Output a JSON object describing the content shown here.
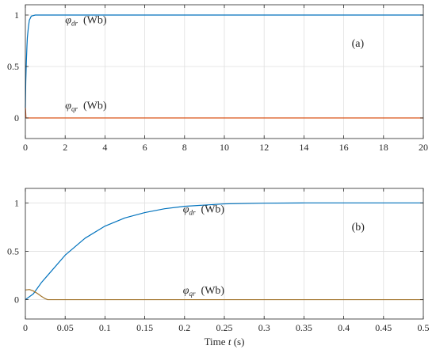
{
  "chart_data": [
    {
      "panel_label": "(a)",
      "type": "line",
      "xlim": [
        0,
        20
      ],
      "ylim": [
        -0.2,
        1.1
      ],
      "xticks": [
        0,
        2,
        4,
        6,
        8,
        10,
        12,
        14,
        16,
        18,
        20
      ],
      "yticks": [
        0,
        0.5,
        1
      ],
      "grid": true,
      "annotations": [
        {
          "symbol": "φ",
          "subscript": "dr",
          "unit": "(Wb)",
          "x": 2.0,
          "y": 0.92
        },
        {
          "symbol": "φ",
          "subscript": "qr",
          "unit": "(Wb)",
          "x": 2.0,
          "y": 0.09
        }
      ],
      "series": [
        {
          "color": "#0072BD",
          "x": [
            0,
            0.02,
            0.05,
            0.08,
            0.1,
            0.15,
            0.2,
            0.3,
            0.5,
            1,
            5,
            10,
            15,
            20
          ],
          "y": [
            0.1,
            0.35,
            0.55,
            0.7,
            0.78,
            0.88,
            0.95,
            0.99,
            1,
            1,
            1,
            1,
            1,
            1
          ]
        },
        {
          "color": "#D95319",
          "x": [
            0,
            0.01,
            0.02,
            0.03,
            0.05,
            1,
            5,
            10,
            15,
            20
          ],
          "y": [
            0.1,
            0.08,
            0.04,
            0,
            0,
            0,
            0,
            0,
            0,
            0
          ]
        }
      ]
    },
    {
      "panel_label": "(b)",
      "type": "line",
      "xlim": [
        0,
        0.5
      ],
      "ylim": [
        -0.2,
        1.15
      ],
      "xticks": [
        0,
        0.05,
        0.1,
        0.15,
        0.2,
        0.25,
        0.3,
        0.35,
        0.4,
        0.45,
        0.5
      ],
      "yticks": [
        0,
        0.5,
        1
      ],
      "grid": true,
      "xlabel": "Time",
      "xlabel_var": "t",
      "xlabel_unit": "(s)",
      "annotations": [
        {
          "symbol": "φ",
          "subscript": "dr",
          "unit": "(Wb)",
          "x": 0.198,
          "y": 0.9
        },
        {
          "symbol": "φ",
          "subscript": "qr",
          "unit": "(Wb)",
          "x": 0.198,
          "y": 0.06
        }
      ],
      "series": [
        {
          "color": "#0072BD",
          "x": [
            0,
            0.01,
            0.02,
            0.03,
            0.05,
            0.075,
            0.1,
            0.125,
            0.15,
            0.175,
            0.2,
            0.25,
            0.3,
            0.35,
            0.4,
            0.5
          ],
          "y": [
            0,
            0.06,
            0.175,
            0.27,
            0.46,
            0.635,
            0.76,
            0.845,
            0.9,
            0.94,
            0.965,
            0.99,
            0.997,
            1,
            1,
            1
          ]
        },
        {
          "color": "#A2742B",
          "x": [
            0,
            0.005,
            0.01,
            0.015,
            0.02,
            0.025,
            0.028,
            0.05,
            0.1,
            0.2,
            0.3,
            0.4,
            0.5
          ],
          "y": [
            0.1,
            0.105,
            0.09,
            0.065,
            0.035,
            0.01,
            0,
            0,
            0,
            0,
            0,
            0,
            0
          ]
        }
      ]
    }
  ]
}
